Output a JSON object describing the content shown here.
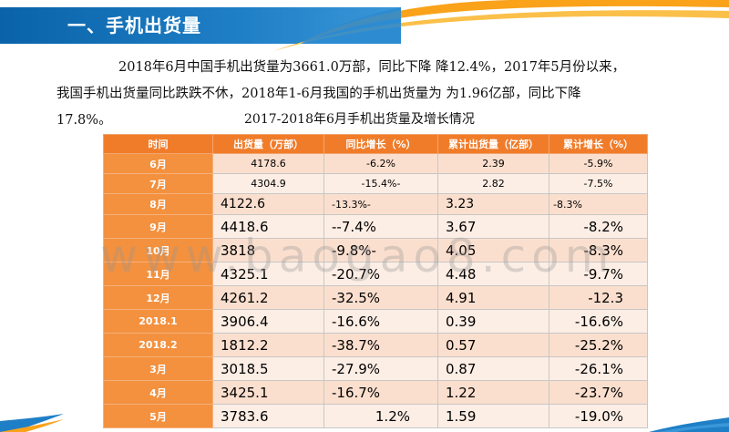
{
  "header": {
    "section_title": "一、手机出货量",
    "colors": {
      "blue": "#0a63a8",
      "orange": "#f9a21a",
      "table_header": "#f07c2a"
    }
  },
  "paragraph": {
    "line1": "2018年6月中国手机出货量为3661.0万部，同比下降 降12.4%，2017年5月份以来，",
    "line2": "我国手机出货量同比跌跌不休，2018年1-6月我国的手机出货量为 为1.96亿部，同比下降",
    "line3": "17.8%。"
  },
  "table": {
    "caption": "2017-2018年6月手机出货量及增长情况",
    "headers": [
      "时间",
      "出货量（万部）",
      "同比增长（%）",
      "累计出货量（亿部）",
      "累计增长（%）"
    ],
    "rows": [
      [
        "6月",
        "4178.6",
        "-6.2%",
        "2.39",
        "-5.9%"
      ],
      [
        "7月",
        "4304.9",
        "-15.4%-",
        "2.82",
        "-7.5%"
      ],
      [
        "8月",
        "4122.6",
        "-13.3%-",
        "3.23",
        "-8.3%"
      ],
      [
        "9月",
        "4418.6",
        "--7.4%",
        "3.67",
        "-8.2%"
      ],
      [
        "10月",
        "3818",
        "-9.8%-",
        "4.05",
        "-8.3%"
      ],
      [
        "11月",
        "4325.1",
        "-20.7%",
        "4.48",
        "-9.7%"
      ],
      [
        "12月",
        "4261.2",
        "-32.5%",
        "4.91",
        "-12.3"
      ],
      [
        "2018.1",
        "3906.4",
        "-16.6%",
        "0.39",
        "-16.6%"
      ],
      [
        "2018.2",
        "1812.2",
        "-38.7%",
        "0.57",
        "-25.2%"
      ],
      [
        "3月",
        "3018.5",
        "-27.9%",
        "0.87",
        "-26.1%"
      ],
      [
        "4月",
        "3425.1",
        "-16.7%",
        "1.22",
        "-23.7%"
      ],
      [
        "5月",
        "3783.6",
        "1.2%",
        "1.59",
        "-19.0%"
      ]
    ]
  },
  "watermark": "www.baogao8.com"
}
